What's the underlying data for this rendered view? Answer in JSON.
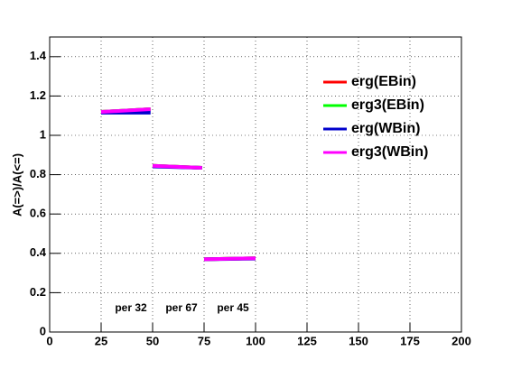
{
  "chart_data": {
    "type": "line",
    "y_label": "A(=>)/A(<=)",
    "x": [
      25,
      49,
      49.5,
      50,
      74,
      74.5,
      75,
      100
    ],
    "series": [
      {
        "name": "erg(EBin)",
        "color": "#ff0000",
        "values": [
          1.119,
          1.133,
          null,
          0.845,
          0.835,
          null,
          0.37,
          0.375
        ]
      },
      {
        "name": "erg3(EBin)",
        "color": "#00ff00",
        "values": [
          1.119,
          1.133,
          null,
          0.845,
          0.835,
          null,
          0.37,
          0.375
        ]
      },
      {
        "name": "erg(WBin)",
        "color": "#0000cc",
        "values": [
          1.115,
          1.115,
          null,
          0.842,
          0.835,
          null,
          0.37,
          0.373
        ]
      },
      {
        "name": "erg3(WBin)",
        "color": "#ff00ff",
        "values": [
          1.119,
          1.133,
          null,
          0.845,
          0.835,
          null,
          0.37,
          0.375
        ]
      }
    ],
    "annotations": [
      "per 32",
      "per 67",
      "per 45"
    ],
    "xlim": [
      0,
      200
    ],
    "xticks": [
      0,
      25,
      50,
      75,
      100,
      125,
      150,
      175,
      200
    ],
    "ylim": [
      0,
      1.5
    ],
    "yticks": [
      0,
      0.2,
      0.4,
      0.6,
      0.8,
      1,
      1.2,
      1.4
    ],
    "grid": true,
    "legend": "top-right"
  }
}
